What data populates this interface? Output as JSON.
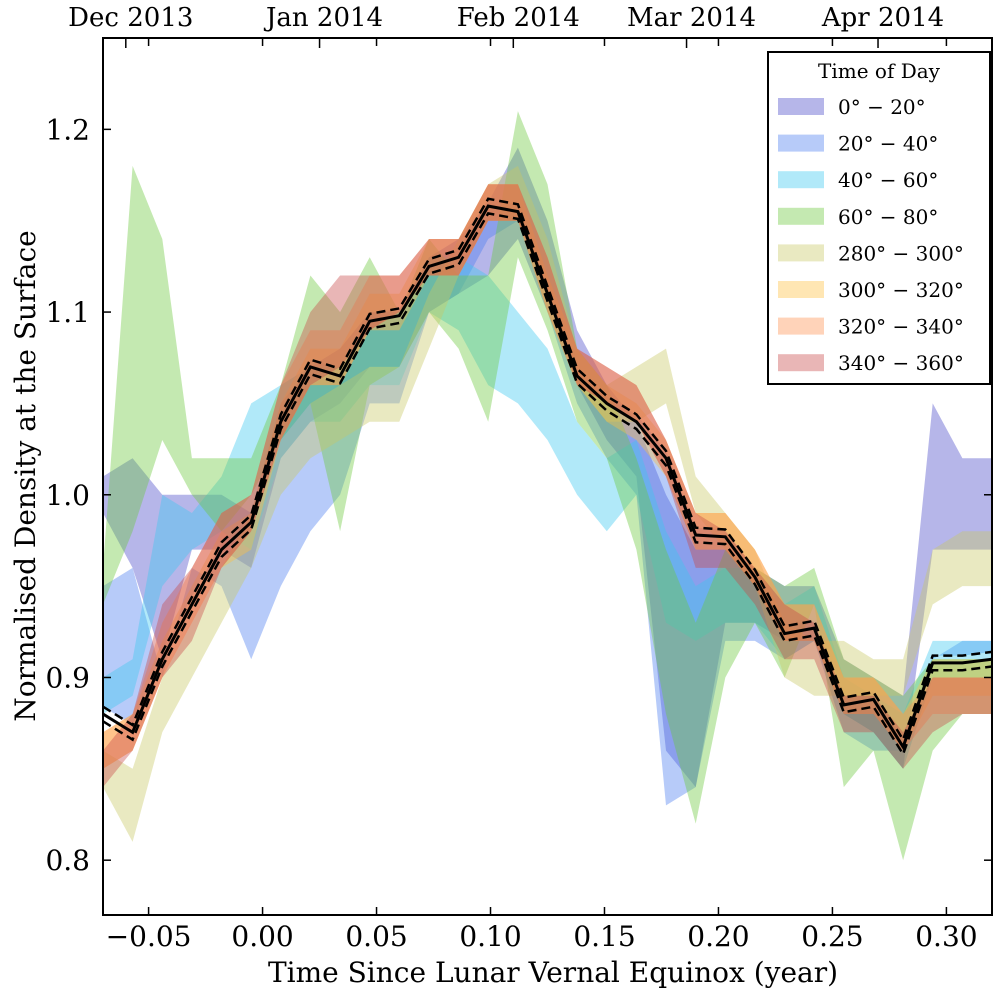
{
  "chart_data": {
    "type": "area",
    "xlabel": "Time Since Lunar Vernal Equinox (year)",
    "ylabel": "Normalised Density at the Surface",
    "xlim": [
      -0.07,
      0.32
    ],
    "ylim": [
      0.77,
      1.25
    ],
    "x_ticks": [
      -0.05,
      0.0,
      0.05,
      0.1,
      0.15,
      0.2,
      0.25,
      0.3
    ],
    "x_tick_labels": [
      "−0.05",
      "0.00",
      "0.05",
      "0.10",
      "0.15",
      "0.20",
      "0.25",
      "0.30"
    ],
    "y_ticks": [
      0.8,
      0.9,
      1.0,
      1.1,
      1.2
    ],
    "y_tick_labels": [
      "0.8",
      "0.9",
      "1.0",
      "1.1",
      "1.2"
    ],
    "top_axis_ticks": [
      {
        "label": "Dec 2013",
        "x": -0.06
      },
      {
        "label": "Jan 2014",
        "x": 0.025
      },
      {
        "label": "Feb 2014",
        "x": 0.11
      },
      {
        "label": "Mar 2014",
        "x": 0.186
      },
      {
        "label": "Apr 2014",
        "x": 0.27
      }
    ],
    "legend": {
      "title": "Time of Day",
      "position": "top-right"
    },
    "x": [
      -0.07,
      -0.057,
      -0.044,
      -0.031,
      -0.018,
      -0.005,
      0.008,
      0.021,
      0.034,
      0.047,
      0.06,
      0.073,
      0.086,
      0.099,
      0.112,
      0.125,
      0.138,
      0.151,
      0.164,
      0.177,
      0.19,
      0.203,
      0.216,
      0.229,
      0.242,
      0.255,
      0.268,
      0.281,
      0.294,
      0.307,
      0.32
    ],
    "mean_line": [
      0.88,
      0.87,
      0.91,
      0.94,
      0.97,
      0.985,
      1.04,
      1.07,
      1.065,
      1.095,
      1.098,
      1.125,
      1.13,
      1.158,
      1.155,
      1.11,
      1.065,
      1.05,
      1.04,
      1.02,
      0.978,
      0.977,
      0.955,
      0.924,
      0.927,
      0.885,
      0.888,
      0.862,
      0.908,
      0.908,
      0.91
    ],
    "mean_upper": [
      0.884,
      0.874,
      0.914,
      0.944,
      0.974,
      0.989,
      1.044,
      1.074,
      1.069,
      1.099,
      1.102,
      1.129,
      1.134,
      1.162,
      1.159,
      1.114,
      1.069,
      1.054,
      1.044,
      1.024,
      0.982,
      0.981,
      0.959,
      0.928,
      0.931,
      0.889,
      0.892,
      0.866,
      0.912,
      0.912,
      0.914
    ],
    "mean_lower": [
      0.876,
      0.866,
      0.906,
      0.936,
      0.966,
      0.981,
      1.036,
      1.066,
      1.061,
      1.091,
      1.094,
      1.121,
      1.126,
      1.154,
      1.151,
      1.106,
      1.061,
      1.046,
      1.036,
      1.016,
      0.974,
      0.973,
      0.951,
      0.92,
      0.923,
      0.881,
      0.884,
      0.858,
      0.904,
      0.904,
      0.906
    ],
    "series": [
      {
        "name": "0° − 20°",
        "color": "#4848c8",
        "lower": [
          0.99,
          0.96,
          0.91,
          0.97,
          0.97,
          0.96,
          1.02,
          1.04,
          1.05,
          1.07,
          1.07,
          1.1,
          1.11,
          1.12,
          1.14,
          1.1,
          1.06,
          1.03,
          1.01,
          0.86,
          0.84,
          0.93,
          0.93,
          0.92,
          0.92,
          0.88,
          0.87,
          0.85,
          0.97,
          0.97,
          0.97
        ],
        "upper": [
          1.01,
          1.02,
          1.0,
          1.0,
          1.0,
          0.99,
          1.05,
          1.07,
          1.08,
          1.1,
          1.1,
          1.13,
          1.14,
          1.16,
          1.19,
          1.15,
          1.09,
          1.06,
          1.04,
          1.0,
          0.97,
          0.97,
          0.96,
          0.95,
          0.95,
          0.91,
          0.9,
          0.89,
          1.05,
          1.02,
          1.02
        ]
      },
      {
        "name": "20° − 40°",
        "color": "#4a7cf0",
        "lower": [
          0.95,
          0.96,
          0.9,
          0.96,
          0.95,
          0.91,
          0.95,
          0.98,
          1.0,
          1.05,
          1.05,
          1.1,
          1.11,
          1.14,
          1.15,
          1.1,
          1.05,
          1.02,
          1.0,
          0.83,
          0.84,
          0.92,
          0.92,
          0.91,
          0.92,
          0.87,
          0.86,
          0.86,
          0.91,
          0.92,
          0.92
        ]
      },
      {
        "name": "40° − 60°",
        "color": "#3cc8f0",
        "lower": [
          0.88,
          0.89,
          0.95,
          0.97,
          0.98,
          0.97,
          1.02,
          1.04,
          1.04,
          1.06,
          1.06,
          1.1,
          1.09,
          1.06,
          1.05,
          1.03,
          1.0,
          0.98,
          1.0,
          0.93,
          0.92,
          0.93,
          0.93,
          0.91,
          0.92,
          0.88,
          0.87,
          0.85,
          0.9,
          0.9,
          0.9
        ],
        "upper": [
          0.9,
          0.91,
          1.0,
          0.99,
          1.01,
          1.05,
          1.06,
          1.07,
          1.07,
          1.09,
          1.09,
          1.13,
          1.13,
          1.12,
          1.1,
          1.08,
          1.04,
          1.02,
          1.03,
          0.98,
          0.95,
          0.96,
          0.96,
          0.94,
          0.95,
          0.9,
          0.89,
          0.88,
          0.92,
          0.92,
          0.92
        ]
      },
      {
        "name": "60° − 80°",
        "color": "#6cc83c",
        "lower": [
          0.94,
          0.98,
          1.03,
          1.0,
          0.98,
          1.0,
          1.03,
          1.05,
          0.98,
          1.06,
          1.07,
          1.1,
          1.08,
          1.04,
          1.13,
          1.09,
          1.04,
          1.02,
          0.97,
          0.88,
          0.82,
          0.9,
          0.93,
          0.9,
          0.94,
          0.84,
          0.86,
          0.8,
          0.86,
          0.88,
          0.88
        ],
        "upper": [
          0.96,
          1.18,
          1.14,
          1.02,
          1.02,
          1.02,
          1.06,
          1.12,
          1.1,
          1.13,
          1.1,
          1.14,
          1.12,
          1.12,
          1.21,
          1.17,
          1.08,
          1.06,
          1.02,
          0.97,
          0.93,
          0.97,
          0.96,
          0.95,
          0.96,
          0.91,
          0.9,
          0.89,
          0.91,
          0.91,
          0.91
        ]
      },
      {
        "name": "280° − 300°",
        "color": "#c8c864",
        "lower": [
          0.84,
          0.81,
          0.87,
          0.9,
          0.93,
          0.96,
          1.0,
          1.02,
          1.03,
          1.04,
          1.04,
          1.08,
          1.12,
          1.15,
          1.15,
          1.11,
          1.06,
          1.04,
          1.04,
          1.05,
          0.99,
          0.97,
          0.95,
          0.9,
          0.89,
          0.89,
          0.89,
          0.89,
          0.94,
          0.95,
          0.95
        ],
        "upper": [
          0.86,
          0.85,
          0.9,
          0.93,
          0.96,
          0.99,
          1.03,
          1.05,
          1.06,
          1.07,
          1.07,
          1.11,
          1.14,
          1.17,
          1.18,
          1.14,
          1.08,
          1.06,
          1.07,
          1.08,
          1.01,
          0.99,
          0.97,
          0.93,
          0.92,
          0.92,
          0.91,
          0.91,
          0.97,
          0.98,
          0.98
        ]
      },
      {
        "name": "300° − 320°",
        "color": "#ffc040",
        "lower": [
          0.85,
          0.86,
          0.9,
          0.93,
          0.96,
          0.97,
          1.03,
          1.06,
          1.06,
          1.09,
          1.09,
          1.12,
          1.12,
          1.15,
          1.15,
          1.1,
          1.06,
          1.04,
          1.03,
          1.01,
          0.97,
          0.97,
          0.95,
          0.92,
          0.92,
          0.88,
          0.88,
          0.86,
          0.89,
          0.89,
          0.89
        ],
        "upper": [
          0.87,
          0.88,
          0.92,
          0.95,
          0.98,
          0.99,
          1.05,
          1.08,
          1.08,
          1.11,
          1.11,
          1.14,
          1.14,
          1.17,
          1.17,
          1.12,
          1.08,
          1.06,
          1.05,
          1.03,
          0.99,
          0.99,
          0.97,
          0.94,
          0.94,
          0.9,
          0.9,
          0.88,
          0.91,
          0.91,
          0.91
        ]
      },
      {
        "name": "320° − 340°",
        "color": "#ff9050",
        "lower": [
          0.85,
          0.86,
          0.9,
          0.93,
          0.96,
          0.98,
          1.03,
          1.06,
          1.06,
          1.09,
          1.1,
          1.12,
          1.12,
          1.15,
          1.15,
          1.1,
          1.06,
          1.05,
          1.04,
          1.01,
          0.97,
          0.97,
          0.95,
          0.92,
          0.92,
          0.88,
          0.88,
          0.86,
          0.88,
          0.88,
          0.88
        ],
        "upper": [
          0.87,
          0.88,
          0.93,
          0.96,
          0.99,
          1.0,
          1.06,
          1.09,
          1.09,
          1.12,
          1.12,
          1.14,
          1.14,
          1.17,
          1.17,
          1.13,
          1.08,
          1.07,
          1.06,
          1.03,
          0.99,
          0.99,
          0.97,
          0.94,
          0.94,
          0.9,
          0.9,
          0.88,
          0.9,
          0.9,
          0.9
        ]
      },
      {
        "name": "340° − 360°",
        "color": "#c84848",
        "lower": [
          0.84,
          0.86,
          0.9,
          0.92,
          0.96,
          0.98,
          1.03,
          1.06,
          1.07,
          1.09,
          1.1,
          1.12,
          1.12,
          1.15,
          1.15,
          1.11,
          1.06,
          1.05,
          1.04,
          1.01,
          0.96,
          0.96,
          0.94,
          0.91,
          0.91,
          0.87,
          0.87,
          0.85,
          0.87,
          0.88,
          0.88
        ],
        "upper": [
          0.86,
          0.88,
          0.94,
          0.96,
          0.99,
          1.0,
          1.06,
          1.1,
          1.12,
          1.12,
          1.12,
          1.14,
          1.14,
          1.17,
          1.17,
          1.13,
          1.08,
          1.07,
          1.06,
          1.03,
          0.99,
          0.98,
          0.96,
          0.94,
          0.93,
          0.89,
          0.89,
          0.87,
          0.9,
          0.9,
          0.9
        ]
      }
    ]
  }
}
